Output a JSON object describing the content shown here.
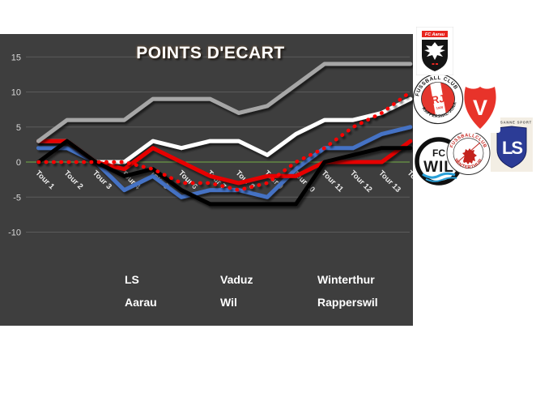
{
  "title": "POINTS D'ECART",
  "chart_data": {
    "type": "line",
    "title": "POINTS D'ECART",
    "xlabel": "",
    "ylabel": "",
    "ylim": [
      -10,
      15
    ],
    "grid": true,
    "background": "#3e3e3e",
    "gridline_color": "#5b5b5b",
    "zero_line_color": "#74ad47",
    "legend_position": "bottom",
    "categories": [
      "Tour 1",
      "Tour 2",
      "Tour 3",
      "Tour 4",
      "Tour 5",
      "Tour 6",
      "Tour 7",
      "Tour 8",
      "Tour 9",
      "Tour 10",
      "Tour 11",
      "Tour 12",
      "Tour 13",
      "Tour 14"
    ],
    "y_ticks": [
      {
        "label": "15",
        "value": 15
      },
      {
        "label": "10",
        "value": 10
      },
      {
        "label": "5",
        "value": 5
      },
      {
        "label": "0",
        "value": 0
      },
      {
        "label": "-5",
        "value": -5
      },
      {
        "label": "-10",
        "value": -10
      }
    ],
    "series": [
      {
        "name": "LS",
        "color": "#4472c4",
        "style": "solid",
        "values": [
          2,
          2,
          0,
          -4,
          -2,
          -5,
          -4,
          -4,
          -5,
          -1,
          2,
          2,
          4,
          5
        ]
      },
      {
        "name": "Vaduz",
        "color": "#ffffff",
        "style": "solid",
        "values": [
          3,
          3,
          0,
          0,
          3,
          2,
          3,
          3,
          1,
          4,
          6,
          6,
          7,
          9
        ]
      },
      {
        "name": "Winterthur",
        "color": "#e60000",
        "style": "solid",
        "values": [
          3,
          3,
          0,
          -1,
          2,
          0,
          -2,
          -3,
          -2,
          -2,
          0,
          0,
          0,
          3
        ]
      },
      {
        "name": "Aarau",
        "color": "#a6a6a6",
        "style": "solid",
        "values": [
          3,
          6,
          6,
          6,
          9,
          9,
          9,
          7,
          8,
          11,
          14,
          14,
          14,
          14
        ]
      },
      {
        "name": "Wil",
        "color": "#000000",
        "style": "solid",
        "values": [
          0,
          3,
          0,
          -2,
          -1,
          -4,
          -6,
          -6,
          -6,
          -6,
          0,
          1,
          2,
          2
        ]
      },
      {
        "name": "Rapperswil",
        "color": "#ff0000",
        "style": "dotted",
        "values": [
          0,
          0,
          0,
          0,
          -1,
          -3,
          -3,
          -4,
          -3,
          0,
          2,
          5,
          7,
          10
        ]
      }
    ],
    "legend": {
      "rows": [
        [
          "LS",
          "Vaduz",
          "Winterthur"
        ],
        [
          "Aarau",
          "Wil",
          "Rapperswil"
        ]
      ]
    }
  },
  "logos": {
    "aarau": {
      "banner": "FC Aarau"
    },
    "rapperswil": {
      "top_text": "FUSSBALL CLUB",
      "bottom_text": "RAPPERSWIL-JONA",
      "monogram": "RJ",
      "year": "1928"
    },
    "vaduz": {
      "letter": "V"
    },
    "lausanne": {
      "caption": "LAUSANNE SPORT",
      "monogram": "LS"
    },
    "wil": {
      "top": "FC",
      "name": "WIL"
    },
    "winterthur": {
      "top_text": "FUSSBALLCLUB",
      "bottom_text": "WINTERTHUR"
    }
  }
}
